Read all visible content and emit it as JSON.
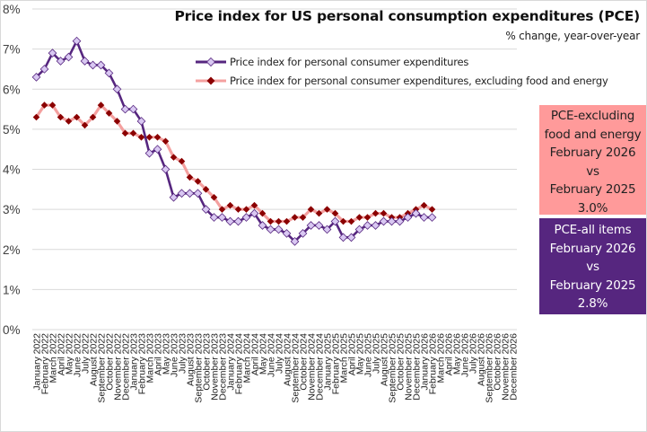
{
  "chart_data": {
    "type": "line",
    "title": "Price index for US personal consumption expenditures (PCE)",
    "subtitle": "% change, year-over-year",
    "xlabel": "",
    "ylabel": "",
    "ylim": [
      0,
      8
    ],
    "yticks": [
      0,
      1,
      2,
      3,
      4,
      5,
      6,
      7,
      8
    ],
    "ytick_labels": [
      "0%",
      "1%",
      "2%",
      "3%",
      "4%",
      "5%",
      "6%",
      "7%",
      "8%"
    ],
    "grid": true,
    "legend_position": "top-right",
    "x": [
      "January 2022",
      "February 2022",
      "March 2022",
      "April 2022",
      "May 2022",
      "June 2022",
      "July 2022",
      "August 2022",
      "September 2022",
      "October 2022",
      "November 2022",
      "December 2022",
      "January 2023",
      "February 2023",
      "March 2023",
      "April 2023",
      "May 2023",
      "June 2023",
      "July 2023",
      "August 2023",
      "September 2023",
      "October 2023",
      "November 2023",
      "December 2023",
      "January 2024",
      "February 2024",
      "March 2024",
      "April 2024",
      "May 2024",
      "June 2024",
      "July 2024",
      "August 2024",
      "September 2024",
      "October 2024",
      "November 2024",
      "December 2024",
      "January 2025",
      "February 2025",
      "March 2025",
      "April 2025",
      "May 2025",
      "June 2025",
      "July 2025",
      "August 2025",
      "September 2025",
      "October 2025",
      "November 2025",
      "December 2025",
      "January 2026",
      "February 2026",
      "March 2026",
      "April 2026",
      "May 2026",
      "June 2026",
      "July 2026",
      "August 2026",
      "September 2026",
      "October 2026",
      "November 2026",
      "December 2026"
    ],
    "series": [
      {
        "name": "Price index for personal consumer expenditures",
        "color": "#56267f",
        "marker_fill": "#d9c8f2",
        "marker": "diamond",
        "values": [
          6.3,
          6.5,
          6.9,
          6.7,
          6.8,
          7.2,
          6.7,
          6.6,
          6.6,
          6.4,
          6.0,
          5.5,
          5.5,
          5.2,
          4.4,
          4.5,
          4.0,
          3.3,
          3.4,
          3.4,
          3.4,
          3.0,
          2.8,
          2.8,
          2.7,
          2.7,
          2.8,
          2.9,
          2.6,
          2.5,
          2.5,
          2.4,
          2.2,
          2.4,
          2.6,
          2.6,
          2.5,
          2.7,
          2.3,
          2.3,
          2.5,
          2.6,
          2.6,
          2.7,
          2.7,
          2.7,
          2.8,
          2.9,
          2.8,
          2.8
        ]
      },
      {
        "name": "Price index for personal consumer expenditures, excluding food and energy",
        "color": "#f4a09f",
        "marker_fill": "#8b0000",
        "marker": "diamond",
        "values": [
          5.3,
          5.6,
          5.6,
          5.3,
          5.2,
          5.3,
          5.1,
          5.3,
          5.6,
          5.4,
          5.2,
          4.9,
          4.9,
          4.8,
          4.8,
          4.8,
          4.7,
          4.3,
          4.2,
          3.8,
          3.7,
          3.5,
          3.3,
          3.0,
          3.1,
          3.0,
          3.0,
          3.1,
          2.9,
          2.7,
          2.7,
          2.7,
          2.8,
          2.8,
          3.0,
          2.9,
          3.0,
          2.9,
          2.7,
          2.7,
          2.8,
          2.8,
          2.9,
          2.9,
          2.8,
          2.8,
          2.9,
          3.0,
          3.1,
          3.0
        ]
      }
    ]
  },
  "callouts": {
    "core": {
      "lines": [
        "PCE-excluding",
        "food and energy",
        "February 2026",
        "vs",
        "February 2025",
        "3.0%"
      ],
      "background": "#ff9a9a"
    },
    "all_items": {
      "lines": [
        "PCE-all items",
        "February 2026",
        "vs",
        "February 2025",
        "2.8%"
      ],
      "background": "#56267f"
    }
  }
}
